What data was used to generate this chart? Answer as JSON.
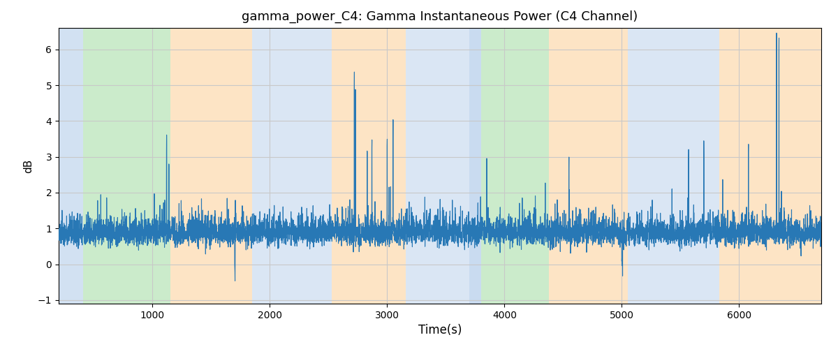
{
  "title": "gamma_power_C4: Gamma Instantaneous Power (C4 Channel)",
  "xlabel": "Time(s)",
  "ylabel": "dB",
  "xlim": [
    200,
    6700
  ],
  "ylim": [
    -1.1,
    6.6
  ],
  "line_color": "#2878b5",
  "line_width": 0.8,
  "background_color": "#ffffff",
  "grid_color": "#c8c8c8",
  "bands": [
    {
      "xmin": 200,
      "xmax": 410,
      "color": "#adc9e8",
      "alpha": 0.55
    },
    {
      "xmin": 410,
      "xmax": 1150,
      "color": "#99d898",
      "alpha": 0.5
    },
    {
      "xmin": 1150,
      "xmax": 1850,
      "color": "#fccf96",
      "alpha": 0.55
    },
    {
      "xmin": 1850,
      "xmax": 2530,
      "color": "#adc9e8",
      "alpha": 0.45
    },
    {
      "xmin": 2530,
      "xmax": 3160,
      "color": "#fccf96",
      "alpha": 0.55
    },
    {
      "xmin": 3160,
      "xmax": 3700,
      "color": "#adc9e8",
      "alpha": 0.45
    },
    {
      "xmin": 3700,
      "xmax": 3800,
      "color": "#adc9e8",
      "alpha": 0.65
    },
    {
      "xmin": 3800,
      "xmax": 4380,
      "color": "#99d898",
      "alpha": 0.5
    },
    {
      "xmin": 4380,
      "xmax": 5050,
      "color": "#fccf96",
      "alpha": 0.55
    },
    {
      "xmin": 5050,
      "xmax": 5830,
      "color": "#adc9e8",
      "alpha": 0.45
    },
    {
      "xmin": 5830,
      "xmax": 6700,
      "color": "#fccf96",
      "alpha": 0.55
    }
  ],
  "figsize": [
    12.0,
    5.0
  ],
  "dpi": 100,
  "xticks": [
    1000,
    2000,
    3000,
    4000,
    5000,
    6000
  ],
  "yticks": [
    -1,
    0,
    1,
    2,
    3,
    4,
    5,
    6
  ],
  "n_points": 6500,
  "seed": 3
}
